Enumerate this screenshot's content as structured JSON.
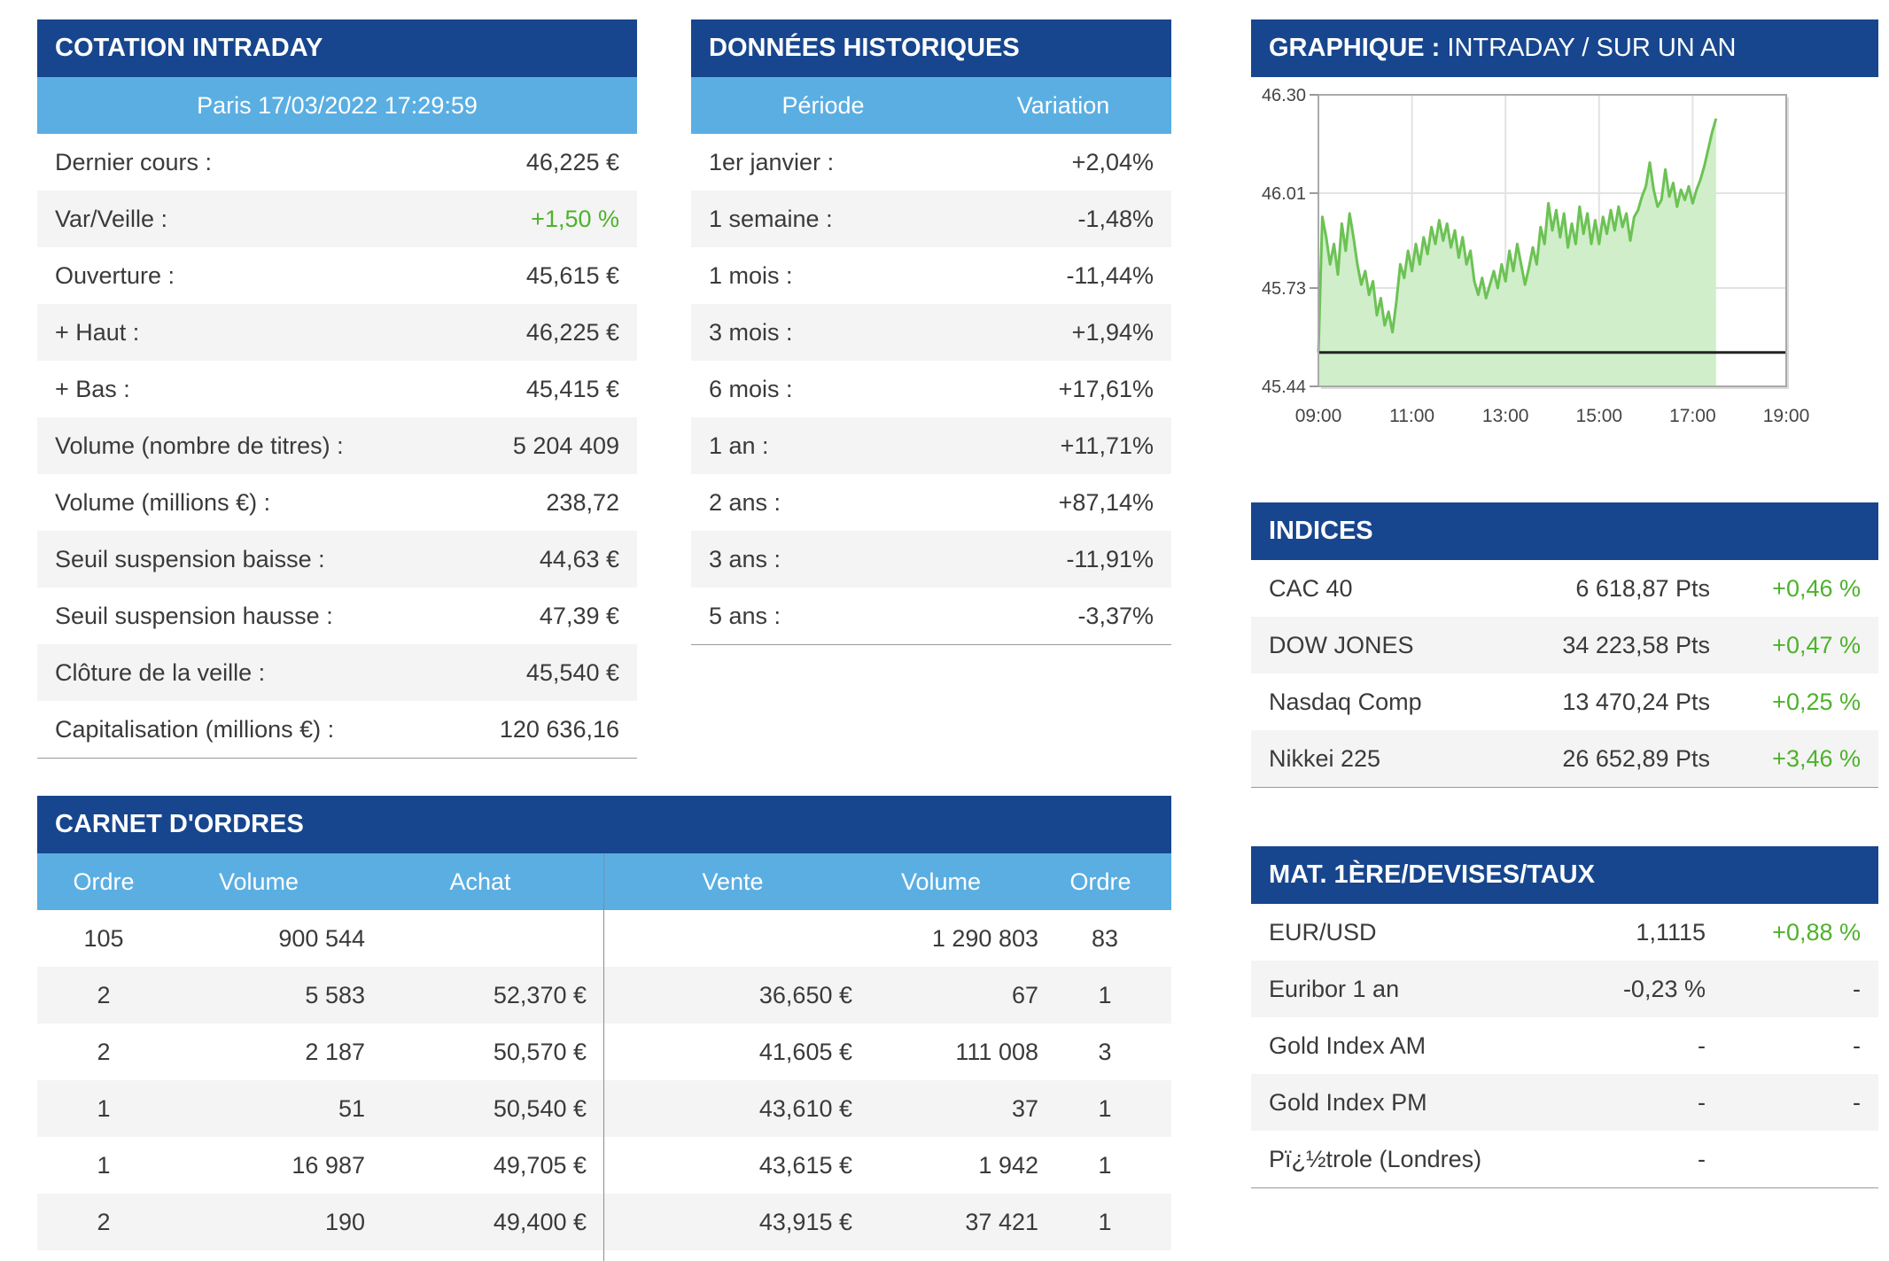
{
  "cotation": {
    "title": "COTATION INTRADAY",
    "subtitle": "Paris 17/03/2022 17:29:59",
    "rows": [
      {
        "label": "Dernier cours :",
        "value": "46,225 €"
      },
      {
        "label": "Var/Veille :",
        "value": "+1,50 %"
      },
      {
        "label": "Ouverture :",
        "value": "45,615 €"
      },
      {
        "label": "+ Haut :",
        "value": "46,225 €"
      },
      {
        "label": "+ Bas :",
        "value": "45,415 €"
      },
      {
        "label": "Volume (nombre de titres) :",
        "value": "5 204 409"
      },
      {
        "label": "Volume (millions €) :",
        "value": "238,72"
      },
      {
        "label": "Seuil suspension baisse :",
        "value": "44,63 €"
      },
      {
        "label": "Seuil suspension hausse :",
        "value": "47,39 €"
      },
      {
        "label": "Clôture de la veille :",
        "value": "45,540 €"
      },
      {
        "label": "Capitalisation (millions €) :",
        "value": "120 636,16"
      }
    ]
  },
  "historique": {
    "title": "DONNÉES HISTORIQUES",
    "col_periode": "Période",
    "col_variation": "Variation",
    "rows": [
      {
        "label": "1er janvier :",
        "value": "+2,04%"
      },
      {
        "label": "1 semaine :",
        "value": "-1,48%"
      },
      {
        "label": "1 mois :",
        "value": "-11,44%"
      },
      {
        "label": "3 mois :",
        "value": "+1,94%"
      },
      {
        "label": "6 mois :",
        "value": "+17,61%"
      },
      {
        "label": "1 an :",
        "value": "+11,71%"
      },
      {
        "label": "2 ans :",
        "value": "+87,14%"
      },
      {
        "label": "3 ans :",
        "value": "-11,91%"
      },
      {
        "label": "5 ans :",
        "value": "-3,37%"
      }
    ]
  },
  "graphique": {
    "title_bold": "GRAPHIQUE :",
    "title_links": "INTRADAY / SUR UN AN"
  },
  "chart_data": {
    "type": "area",
    "x_ticks": [
      "09:00",
      "11:00",
      "13:00",
      "15:00",
      "17:00",
      "19:00"
    ],
    "y_ticks": [
      "46.30",
      "46.01",
      "45.73",
      "45.44"
    ],
    "ylim": [
      45.44,
      46.3
    ],
    "x_range": [
      "09:00",
      "19:00"
    ],
    "reference_line": 45.54,
    "grid": true,
    "color": "#6cc254",
    "fill": "#cfeec9",
    "points": [
      [
        "09:00",
        45.54
      ],
      [
        "09:05",
        45.94
      ],
      [
        "09:10",
        45.88
      ],
      [
        "09:15",
        45.8
      ],
      [
        "09:20",
        45.86
      ],
      [
        "09:25",
        45.77
      ],
      [
        "09:30",
        45.92
      ],
      [
        "09:35",
        45.84
      ],
      [
        "09:40",
        45.95
      ],
      [
        "09:45",
        45.88
      ],
      [
        "09:50",
        45.8
      ],
      [
        "09:55",
        45.74
      ],
      [
        "10:00",
        45.78
      ],
      [
        "10:05",
        45.71
      ],
      [
        "10:10",
        45.75
      ],
      [
        "10:15",
        45.65
      ],
      [
        "10:20",
        45.7
      ],
      [
        "10:25",
        45.62
      ],
      [
        "10:30",
        45.66
      ],
      [
        "10:35",
        45.6
      ],
      [
        "10:40",
        45.69
      ],
      [
        "10:45",
        45.8
      ],
      [
        "10:50",
        45.76
      ],
      [
        "10:55",
        45.84
      ],
      [
        "11:00",
        45.78
      ],
      [
        "11:05",
        45.86
      ],
      [
        "11:10",
        45.8
      ],
      [
        "11:15",
        45.88
      ],
      [
        "11:20",
        45.83
      ],
      [
        "11:25",
        45.91
      ],
      [
        "11:30",
        45.86
      ],
      [
        "11:35",
        45.93
      ],
      [
        "11:40",
        45.87
      ],
      [
        "11:45",
        45.92
      ],
      [
        "11:50",
        45.85
      ],
      [
        "11:55",
        45.9
      ],
      [
        "12:00",
        45.82
      ],
      [
        "12:05",
        45.88
      ],
      [
        "12:10",
        45.8
      ],
      [
        "12:15",
        45.84
      ],
      [
        "12:20",
        45.75
      ],
      [
        "12:25",
        45.71
      ],
      [
        "12:30",
        45.76
      ],
      [
        "12:35",
        45.7
      ],
      [
        "12:40",
        45.74
      ],
      [
        "12:45",
        45.78
      ],
      [
        "12:50",
        45.73
      ],
      [
        "12:55",
        45.8
      ],
      [
        "13:00",
        45.75
      ],
      [
        "13:05",
        45.84
      ],
      [
        "13:10",
        45.78
      ],
      [
        "13:15",
        45.86
      ],
      [
        "13:20",
        45.8
      ],
      [
        "13:25",
        45.74
      ],
      [
        "13:30",
        45.79
      ],
      [
        "13:35",
        45.85
      ],
      [
        "13:40",
        45.8
      ],
      [
        "13:45",
        45.91
      ],
      [
        "13:50",
        45.86
      ],
      [
        "13:55",
        45.98
      ],
      [
        "14:00",
        45.9
      ],
      [
        "14:05",
        45.96
      ],
      [
        "14:10",
        45.88
      ],
      [
        "14:15",
        45.95
      ],
      [
        "14:20",
        45.85
      ],
      [
        "14:25",
        45.92
      ],
      [
        "14:30",
        45.86
      ],
      [
        "14:35",
        45.97
      ],
      [
        "14:40",
        45.89
      ],
      [
        "14:45",
        45.95
      ],
      [
        "14:50",
        45.86
      ],
      [
        "14:55",
        45.93
      ],
      [
        "15:00",
        45.86
      ],
      [
        "15:05",
        45.94
      ],
      [
        "15:10",
        45.89
      ],
      [
        "15:15",
        45.96
      ],
      [
        "15:20",
        45.9
      ],
      [
        "15:25",
        45.97
      ],
      [
        "15:30",
        45.91
      ],
      [
        "15:35",
        45.95
      ],
      [
        "15:40",
        45.87
      ],
      [
        "15:45",
        45.94
      ],
      [
        "15:50",
        45.96
      ],
      [
        "15:55",
        46.0
      ],
      [
        "16:00",
        46.03
      ],
      [
        "16:05",
        46.1
      ],
      [
        "16:10",
        46.02
      ],
      [
        "16:15",
        45.97
      ],
      [
        "16:20",
        45.99
      ],
      [
        "16:25",
        46.08
      ],
      [
        "16:30",
        46.0
      ],
      [
        "16:35",
        46.04
      ],
      [
        "16:40",
        45.97
      ],
      [
        "16:45",
        46.02
      ],
      [
        "16:50",
        45.99
      ],
      [
        "16:55",
        46.03
      ],
      [
        "17:00",
        45.98
      ],
      [
        "17:05",
        46.02
      ],
      [
        "17:10",
        46.05
      ],
      [
        "17:15",
        46.09
      ],
      [
        "17:20",
        46.14
      ],
      [
        "17:25",
        46.19
      ],
      [
        "17:30",
        46.23
      ]
    ]
  },
  "indices": {
    "title": "INDICES",
    "rows": [
      {
        "name": "CAC 40",
        "points": "6 618,87 Pts",
        "var": "+0,46 %"
      },
      {
        "name": "DOW JONES",
        "points": "34 223,58 Pts",
        "var": "+0,47 %"
      },
      {
        "name": "Nasdaq Comp",
        "points": "13 470,24 Pts",
        "var": "+0,25 %"
      },
      {
        "name": "Nikkei 225",
        "points": "26 652,89 Pts",
        "var": "+3,46 %"
      }
    ]
  },
  "mat": {
    "title": "MAT. 1ÈRE/DEVISES/TAUX",
    "rows": [
      {
        "name": "EUR/USD",
        "value": "1,1115",
        "var": "+0,88 %"
      },
      {
        "name": "Euribor 1 an",
        "value": "-0,23 %",
        "var": "-"
      },
      {
        "name": "Gold Index AM",
        "value": "-",
        "var": "-"
      },
      {
        "name": "Gold Index PM",
        "value": "-",
        "var": "-"
      },
      {
        "name": "Pï¿½trole (Londres)",
        "value": "-",
        "var": ""
      }
    ]
  },
  "carnet": {
    "title": "CARNET D'ORDRES",
    "headers": [
      "Ordre",
      "Volume",
      "Achat",
      "Vente",
      "Volume",
      "Ordre"
    ],
    "rows": [
      [
        "105",
        "900 544",
        "",
        "",
        "1 290 803",
        "83"
      ],
      [
        "2",
        "5 583",
        "52,370 €",
        "36,650 €",
        "67",
        "1"
      ],
      [
        "2",
        "2 187",
        "50,570 €",
        "41,605 €",
        "111 008",
        "3"
      ],
      [
        "1",
        "51",
        "50,540 €",
        "43,610 €",
        "37",
        "1"
      ],
      [
        "1",
        "16 987",
        "49,705 €",
        "43,615 €",
        "1 942",
        "1"
      ],
      [
        "2",
        "190",
        "49,400 €",
        "43,915 €",
        "37 421",
        "1"
      ]
    ]
  }
}
